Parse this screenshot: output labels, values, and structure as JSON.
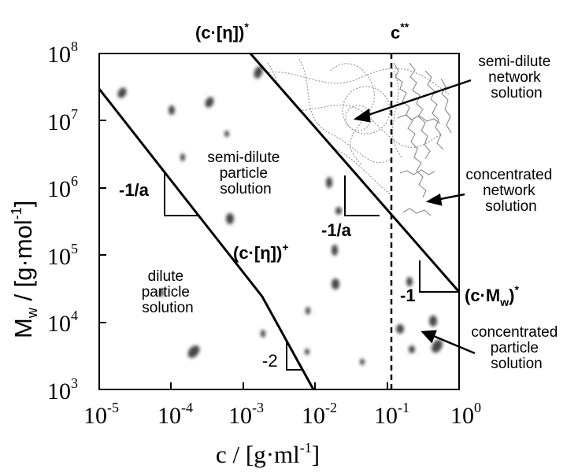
{
  "diagram": {
    "x_axis": {
      "title_main": "c / [g·ml",
      "title_exp": "-1",
      "title_close": "]",
      "ticks": [
        {
          "base": "10",
          "exp": "-5"
        },
        {
          "base": "10",
          "exp": "-4"
        },
        {
          "base": "10",
          "exp": "-3"
        },
        {
          "base": "10",
          "exp": "-2"
        },
        {
          "base": "10",
          "exp": "-1"
        },
        {
          "base": "10",
          "exp": "0"
        }
      ]
    },
    "y_axis": {
      "title_main": "M",
      "title_sub": "w",
      "title_mid": " / [g·mol",
      "title_exp": "-1",
      "title_close": "]",
      "ticks": [
        {
          "base": "10",
          "exp": "3"
        },
        {
          "base": "10",
          "exp": "4"
        },
        {
          "base": "10",
          "exp": "5"
        },
        {
          "base": "10",
          "exp": "6"
        },
        {
          "base": "10",
          "exp": "7"
        },
        {
          "base": "10",
          "exp": "8"
        }
      ]
    },
    "regions": {
      "dilute": [
        "dilute",
        "particle",
        "solution"
      ],
      "semi_dilute_particle": [
        "semi-dilute",
        "particle",
        "solution"
      ],
      "semi_dilute_network": [
        "semi-dilute",
        "network",
        "solution"
      ],
      "concentrated_network": [
        "concentrated",
        "network",
        "solution"
      ],
      "concentrated_particle": [
        "concentrated",
        "particle",
        "solution"
      ]
    },
    "boundaries": {
      "c_eta_star": {
        "text": "(c·[η])",
        "sup": "*"
      },
      "c_eta_plus": {
        "text": "(c·[η])",
        "sup": "+"
      },
      "c_double_star": {
        "text": "c",
        "sup": "**"
      },
      "c_mw_star": {
        "text": "(c·M",
        "sub": "w",
        "close": ")",
        "sup": "*"
      }
    },
    "slopes": {
      "left_triangle": "-1/a",
      "middle_triangle": "-1/a",
      "right_triangle": "-1",
      "bottom_triangle": "-2"
    },
    "colors": {
      "line": "#000000",
      "texture": "#9a9a9a",
      "blob": "#444444"
    }
  }
}
